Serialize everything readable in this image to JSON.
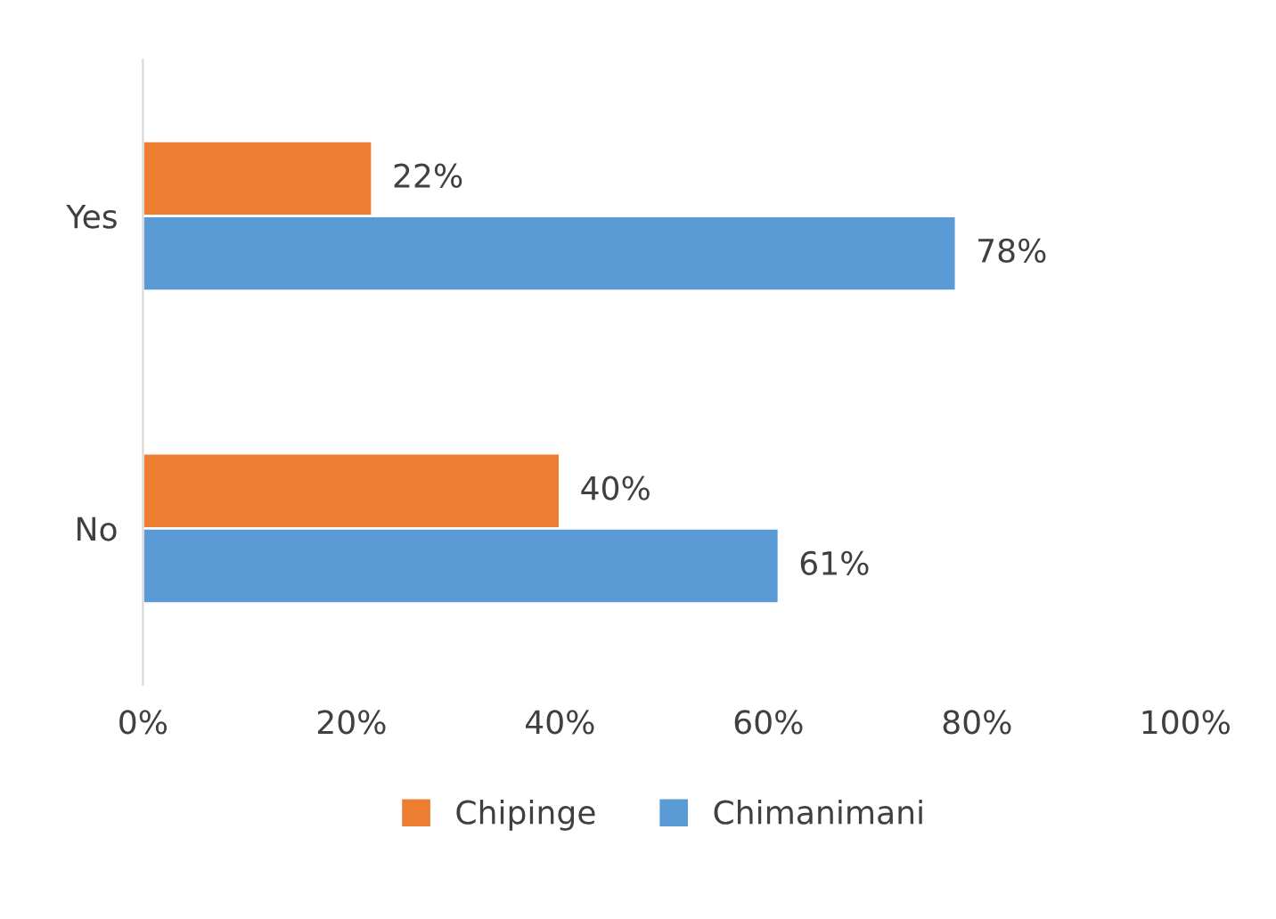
{
  "chart_data": {
    "type": "bar",
    "orientation": "horizontal",
    "categories": [
      "Yes",
      "No"
    ],
    "series": [
      {
        "name": "Chipinge",
        "color": "#ed7d31",
        "values": [
          22,
          40
        ],
        "value_labels": [
          "22%",
          "40%"
        ]
      },
      {
        "name": "Chimanimani",
        "color": "#5b9bd5",
        "values": [
          78,
          61
        ],
        "value_labels": [
          "78%",
          "61%"
        ]
      }
    ],
    "xlim": [
      0,
      100
    ],
    "xticks": [
      {
        "value": 0,
        "label": "0%"
      },
      {
        "value": 20,
        "label": "20%"
      },
      {
        "value": 40,
        "label": "40%"
      },
      {
        "value": 60,
        "label": "60%"
      },
      {
        "value": 80,
        "label": "80%"
      },
      {
        "value": 100,
        "label": "100%"
      }
    ],
    "grid": false,
    "legend": "bottom"
  }
}
